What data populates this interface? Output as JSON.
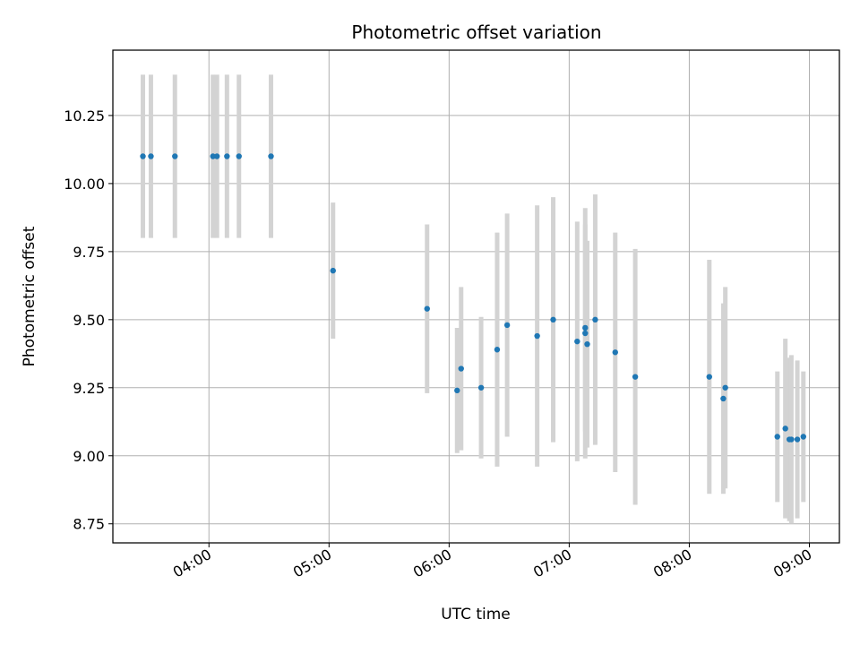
{
  "chart_data": {
    "type": "scatter",
    "title": "Photometric offset variation",
    "xlabel": "UTC time",
    "ylabel": "Photometric offset",
    "xlim": [
      "03:12",
      "09:15"
    ],
    "ylim": [
      8.68,
      10.49
    ],
    "x_ticks": [
      "04:00",
      "05:00",
      "06:00",
      "07:00",
      "08:00",
      "09:00"
    ],
    "y_ticks": [
      8.75,
      9.0,
      9.25,
      9.5,
      9.75,
      10.0,
      10.25
    ],
    "y_tick_labels": [
      "8.75",
      "9.00",
      "9.25",
      "9.50",
      "9.75",
      "10.00",
      "10.25"
    ],
    "grid": true,
    "marker_color": "#1f77b4",
    "errorbar_color": "#d3d3d3",
    "points": [
      {
        "x": "03:27",
        "y": 10.1,
        "err": 0.3
      },
      {
        "x": "03:31",
        "y": 10.1,
        "err": 0.3
      },
      {
        "x": "03:43",
        "y": 10.1,
        "err": 0.3
      },
      {
        "x": "04:02",
        "y": 10.1,
        "err": 0.3
      },
      {
        "x": "04:04",
        "y": 10.1,
        "err": 0.3
      },
      {
        "x": "04:09",
        "y": 10.1,
        "err": 0.3
      },
      {
        "x": "04:15",
        "y": 10.1,
        "err": 0.3
      },
      {
        "x": "04:31",
        "y": 10.1,
        "err": 0.3
      },
      {
        "x": "05:02",
        "y": 9.68,
        "err": 0.25
      },
      {
        "x": "05:49",
        "y": 9.54,
        "err": 0.31
      },
      {
        "x": "06:04",
        "y": 9.24,
        "err": 0.23
      },
      {
        "x": "06:06",
        "y": 9.32,
        "err": 0.3
      },
      {
        "x": "06:16",
        "y": 9.25,
        "err": 0.26
      },
      {
        "x": "06:24",
        "y": 9.39,
        "err": 0.43
      },
      {
        "x": "06:29",
        "y": 9.48,
        "err": 0.41
      },
      {
        "x": "06:44",
        "y": 9.44,
        "err": 0.48
      },
      {
        "x": "06:52",
        "y": 9.5,
        "err": 0.45
      },
      {
        "x": "07:04",
        "y": 9.42,
        "err": 0.44
      },
      {
        "x": "07:08",
        "y": 9.45,
        "err": 0.46
      },
      {
        "x": "07:08",
        "y": 9.47,
        "err": 0.38
      },
      {
        "x": "07:09",
        "y": 9.41,
        "err": 0.38
      },
      {
        "x": "07:13",
        "y": 9.5,
        "err": 0.46
      },
      {
        "x": "07:23",
        "y": 9.38,
        "err": 0.44
      },
      {
        "x": "07:33",
        "y": 9.29,
        "err": 0.47
      },
      {
        "x": "08:10",
        "y": 9.29,
        "err": 0.43
      },
      {
        "x": "08:17",
        "y": 9.21,
        "err": 0.35
      },
      {
        "x": "08:18",
        "y": 9.25,
        "err": 0.37
      },
      {
        "x": "08:44",
        "y": 9.07,
        "err": 0.24
      },
      {
        "x": "08:48",
        "y": 9.1,
        "err": 0.33
      },
      {
        "x": "08:50",
        "y": 9.06,
        "err": 0.3
      },
      {
        "x": "08:51",
        "y": 9.06,
        "err": 0.31
      },
      {
        "x": "08:54",
        "y": 9.06,
        "err": 0.29
      },
      {
        "x": "08:57",
        "y": 9.07,
        "err": 0.24
      }
    ]
  }
}
